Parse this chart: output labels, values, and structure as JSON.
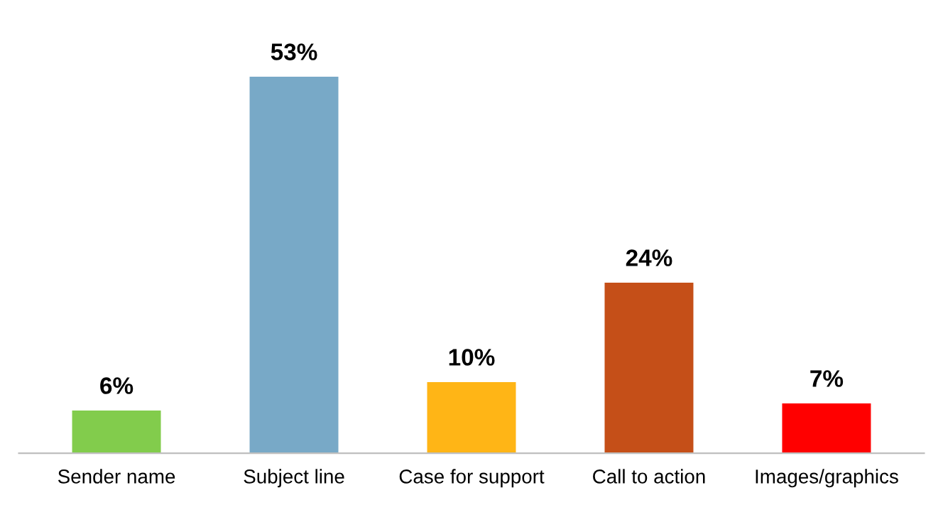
{
  "chart_data": {
    "type": "bar",
    "categories": [
      "Sender name",
      "Subject line",
      "Case for support",
      "Call to action",
      "Images/graphics"
    ],
    "values": [
      6,
      53,
      10,
      24,
      7
    ],
    "colors": [
      "#82cc4c",
      "#78a9c7",
      "#ffb516",
      "#c54f18",
      "#ff0000"
    ],
    "value_labels": [
      "6%",
      "53%",
      "10%",
      "24%",
      "7%"
    ],
    "grid": false,
    "legend": false
  }
}
